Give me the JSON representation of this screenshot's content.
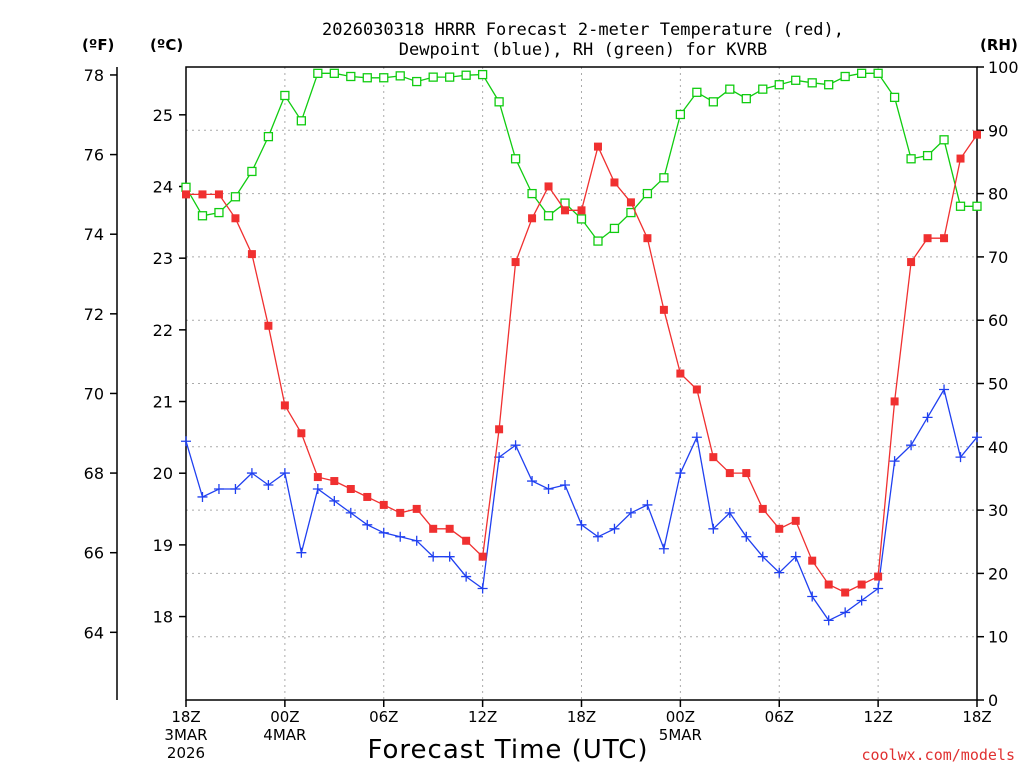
{
  "chart_data": {
    "type": "line",
    "title_line1": "2026030318 HRRR Forecast 2-meter Temperature (red),",
    "title_line2": "Dewpoint (blue), RH (green) for KVRB",
    "xlabel": "Forecast Time (UTC)",
    "credit": "coolwx.com/models",
    "y_left_f": {
      "unit": "(ºF)",
      "range": [
        62.3,
        78.2
      ],
      "ticks": [
        "64",
        "66",
        "68",
        "70",
        "72",
        "74",
        "76",
        "78"
      ]
    },
    "y_left_c": {
      "unit": "(ºC)",
      "range": [
        16.836,
        25.667
      ],
      "ticks": [
        "18",
        "19",
        "20",
        "21",
        "22",
        "23",
        "24",
        "25"
      ]
    },
    "y_right_rh": {
      "unit": "(RH)",
      "range": [
        0,
        100
      ],
      "ticks": [
        "0",
        "10",
        "20",
        "30",
        "40",
        "50",
        "60",
        "70",
        "80",
        "90",
        "100"
      ]
    },
    "x_range": [
      0,
      48
    ],
    "x_ticks": [
      {
        "hour": 0,
        "line1": "18Z",
        "line2": "3MAR",
        "line3": "2026"
      },
      {
        "hour": 6,
        "line1": "00Z",
        "line2": "4MAR",
        "line3": ""
      },
      {
        "hour": 12,
        "line1": "06Z",
        "line2": "",
        "line3": ""
      },
      {
        "hour": 18,
        "line1": "12Z",
        "line2": "",
        "line3": ""
      },
      {
        "hour": 24,
        "line1": "18Z",
        "line2": "",
        "line3": ""
      },
      {
        "hour": 30,
        "line1": "00Z",
        "line2": "5MAR",
        "line3": ""
      },
      {
        "hour": 36,
        "line1": "06Z",
        "line2": "",
        "line3": ""
      },
      {
        "hour": 42,
        "line1": "12Z",
        "line2": "",
        "line3": ""
      },
      {
        "hour": 48,
        "line1": "18Z",
        "line2": "",
        "line3": ""
      }
    ],
    "grid": true,
    "series": [
      {
        "name": "Temperature",
        "units": "F",
        "color": "#f03030",
        "marker": "filled-square",
        "values": [
          75.0,
          75.0,
          75.0,
          74.4,
          73.5,
          71.7,
          69.7,
          69.0,
          67.9,
          67.8,
          67.6,
          67.4,
          67.2,
          67.0,
          67.1,
          66.6,
          66.6,
          66.3,
          65.9,
          69.1,
          73.3,
          74.4,
          75.2,
          74.6,
          74.6,
          76.2,
          75.3,
          74.8,
          73.9,
          72.1,
          70.5,
          70.1,
          68.4,
          68.0,
          68.0,
          67.1,
          66.6,
          66.8,
          65.8,
          65.2,
          65.0,
          65.2,
          65.4,
          69.8,
          73.3,
          73.9,
          73.9,
          75.9,
          76.5
        ]
      },
      {
        "name": "Dewpoint",
        "units": "F",
        "color": "#2040f0",
        "marker": "plus",
        "values": [
          68.8,
          67.4,
          67.6,
          67.6,
          68.0,
          67.7,
          68.0,
          66.0,
          67.6,
          67.3,
          67.0,
          66.7,
          66.5,
          66.4,
          66.3,
          65.9,
          65.9,
          65.4,
          65.1,
          68.4,
          68.7,
          67.8,
          67.6,
          67.7,
          66.7,
          66.4,
          66.6,
          67.0,
          67.2,
          66.1,
          68.0,
          68.9,
          66.6,
          67.0,
          66.4,
          65.9,
          65.5,
          65.9,
          64.9,
          64.3,
          64.5,
          64.8,
          65.1,
          68.3,
          68.7,
          69.4,
          70.1,
          68.4,
          68.9
        ]
      },
      {
        "name": "Relative Humidity",
        "units": "%",
        "color": "#10cc10",
        "marker": "open-square",
        "values": [
          81,
          76.5,
          77,
          79.5,
          83.5,
          89,
          95.5,
          91.5,
          99,
          99,
          98.5,
          98.3,
          98.3,
          98.6,
          97.7,
          98.4,
          98.4,
          98.7,
          98.8,
          94.5,
          85.5,
          80,
          76.5,
          78.5,
          76,
          72.5,
          74.5,
          77,
          80,
          82.5,
          92.5,
          96,
          94.5,
          96.5,
          95,
          96.5,
          97.2,
          97.9,
          97.5,
          97.2,
          98.5,
          99,
          99,
          95.2,
          85.5,
          86,
          88.5,
          78,
          78
        ]
      }
    ]
  }
}
